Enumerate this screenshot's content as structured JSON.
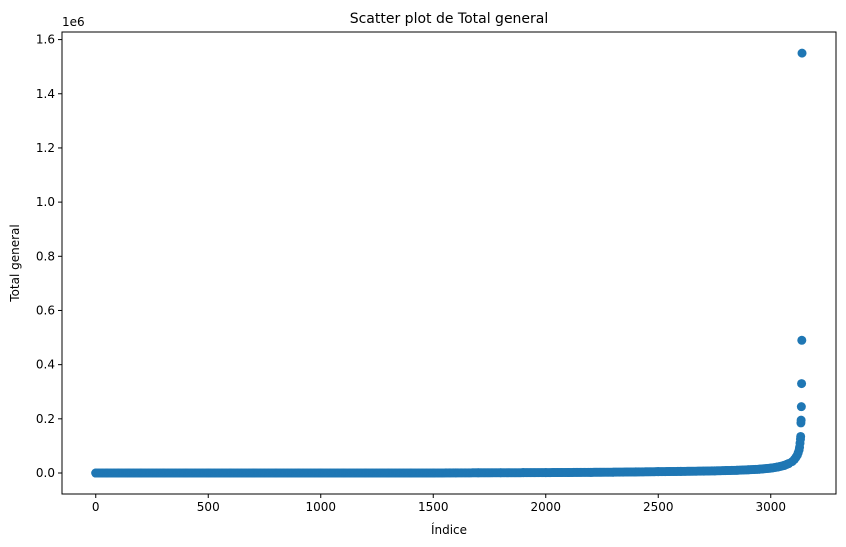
{
  "chart_data": {
    "type": "scatter",
    "title": "Scatter plot de Total general",
    "xlabel": "Índice",
    "ylabel": "Total general",
    "y_offset_label": "1e6",
    "xlim": [
      -150,
      3290
    ],
    "ylim": [
      -0.0775,
      1.628
    ],
    "x_ticks": [
      0,
      500,
      1000,
      1500,
      2000,
      2500,
      3000
    ],
    "x_tick_labels": [
      "0",
      "500",
      "1000",
      "1500",
      "2000",
      "2500",
      "3000"
    ],
    "y_ticks": [
      0.0,
      0.2,
      0.4,
      0.6,
      0.8,
      1.0,
      1.2,
      1.4,
      1.6
    ],
    "y_tick_labels": [
      "0.0",
      "0.2",
      "0.4",
      "0.6",
      "0.8",
      "1.0",
      "1.2",
      "1.4",
      "1.6"
    ],
    "grid": false,
    "marker_color": "#1f77b4",
    "series": [
      {
        "x": [
          0,
          50,
          100,
          200,
          300,
          400,
          500,
          600,
          700,
          800,
          900,
          1000,
          1100,
          1200,
          1300,
          1400,
          1500,
          1600,
          1700,
          1800,
          1900,
          2000,
          2100,
          2200,
          2300,
          2400,
          2500,
          2600,
          2700,
          2750,
          2800,
          2850,
          2900,
          2950,
          3000,
          3030,
          3060,
          3080,
          3095,
          3105,
          3112,
          3118,
          3122,
          3126,
          3128,
          3130,
          3132,
          3133,
          3134,
          3135,
          3136,
          3137,
          3138,
          3139
        ],
        "y": [
          0.0,
          0.0,
          0.0,
          0.0,
          0.0,
          0.0,
          0.0,
          0.0,
          0.0,
          0.0,
          0.0,
          0.0,
          0.0,
          0.0,
          0.0,
          0.0,
          0.0,
          0.0005,
          0.0008,
          0.001,
          0.0012,
          0.0015,
          0.002,
          0.0025,
          0.003,
          0.004,
          0.005,
          0.006,
          0.007,
          0.008,
          0.009,
          0.01,
          0.012,
          0.014,
          0.018,
          0.022,
          0.028,
          0.035,
          0.042,
          0.05,
          0.058,
          0.066,
          0.075,
          0.085,
          0.095,
          0.11,
          0.125,
          0.135,
          0.185,
          0.195,
          0.245,
          0.33,
          0.49,
          1.55
        ]
      }
    ]
  }
}
